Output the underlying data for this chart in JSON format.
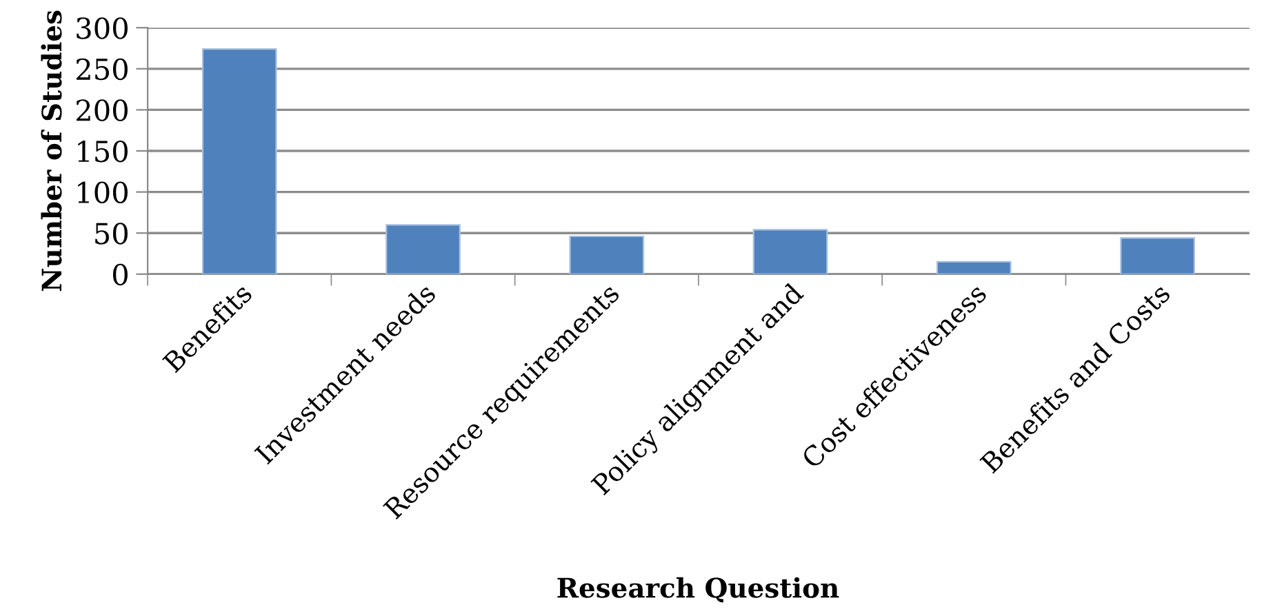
{
  "chart_data": {
    "type": "bar",
    "xlabel": "Research Question",
    "ylabel": "Number of Studies",
    "categories": [
      "Benefits",
      "Investment needs",
      "Resource requirements",
      "Policy alignment and",
      "Cost effectiveness",
      "Benefits and Costs"
    ],
    "values": [
      274,
      60,
      46,
      54,
      15,
      44
    ],
    "color": "#4f81bd",
    "ylim": [
      0,
      300
    ],
    "yticks": [
      0,
      50,
      100,
      150,
      200,
      250,
      300
    ],
    "grid": "y",
    "legend": false
  }
}
